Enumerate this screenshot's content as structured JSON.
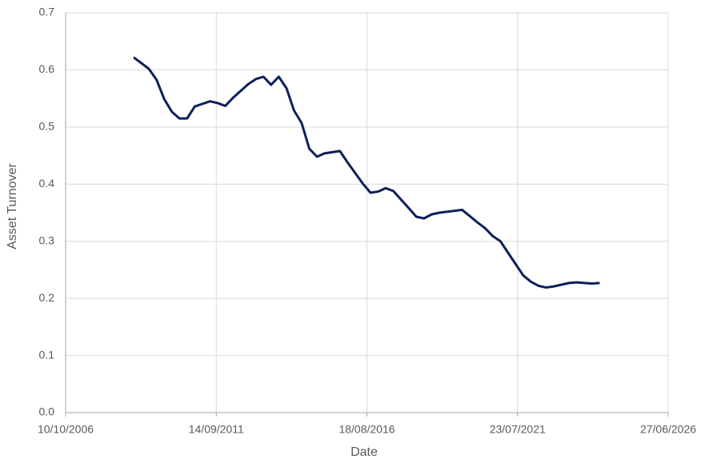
{
  "chart_data": {
    "type": "line",
    "x_label": "Date",
    "y_label": "Asset Turnover",
    "x": [
      "31/12/2008",
      "30/06/2009",
      "30/09/2009",
      "31/12/2009",
      "31/03/2010",
      "30/06/2010",
      "30/09/2010",
      "31/12/2010",
      "30/06/2011",
      "30/09/2011",
      "31/12/2011",
      "31/03/2012",
      "30/09/2012",
      "31/12/2012",
      "31/03/2013",
      "30/06/2013",
      "30/09/2013",
      "31/12/2013",
      "31/03/2014",
      "30/06/2014",
      "30/09/2014",
      "31/12/2014",
      "31/03/2015",
      "30/09/2015",
      "31/12/2015",
      "30/06/2016",
      "30/09/2016",
      "31/12/2016",
      "31/03/2017",
      "30/06/2017",
      "30/09/2017",
      "31/12/2017",
      "31/03/2018",
      "30/06/2018",
      "30/09/2018",
      "31/12/2018",
      "30/09/2019",
      "31/12/2019",
      "31/03/2020",
      "30/06/2020",
      "30/09/2020",
      "31/12/2020",
      "31/03/2021",
      "30/09/2021",
      "31/12/2021",
      "31/03/2022",
      "30/06/2022",
      "30/09/2022",
      "31/03/2023",
      "30/06/2023",
      "30/09/2023",
      "31/12/2023",
      "31/03/2024"
    ],
    "series": [
      {
        "color": "#0c1f5c",
        "values": [
          0.622,
          0.602,
          0.583,
          0.549,
          0.527,
          0.515,
          0.515,
          0.536,
          0.545,
          0.542,
          0.537,
          0.551,
          0.575,
          0.584,
          0.588,
          0.574,
          0.588,
          0.568,
          0.529,
          0.507,
          0.462,
          0.448,
          0.454,
          0.458,
          0.438,
          0.401,
          0.385,
          0.387,
          0.393,
          0.388,
          0.373,
          0.358,
          0.343,
          0.34,
          0.347,
          0.35,
          0.355,
          0.344,
          0.333,
          0.323,
          0.309,
          0.3,
          0.28,
          0.24,
          0.229,
          0.222,
          0.219,
          0.221,
          0.227,
          0.228,
          0.227,
          0.226,
          0.227
        ]
      }
    ],
    "xlim": [
      "10/10/2006",
      "27/06/2026"
    ],
    "xticks": [
      "10/10/2006",
      "14/09/2011",
      "18/08/2016",
      "23/07/2021",
      "27/06/2026"
    ],
    "ylim": [
      0,
      0.7
    ],
    "yticks": [
      {
        "value": 0,
        "label": "0.0"
      },
      0.1,
      0.2,
      0.3,
      0.4,
      0.5,
      0.6,
      0.7
    ],
    "grid": true
  }
}
